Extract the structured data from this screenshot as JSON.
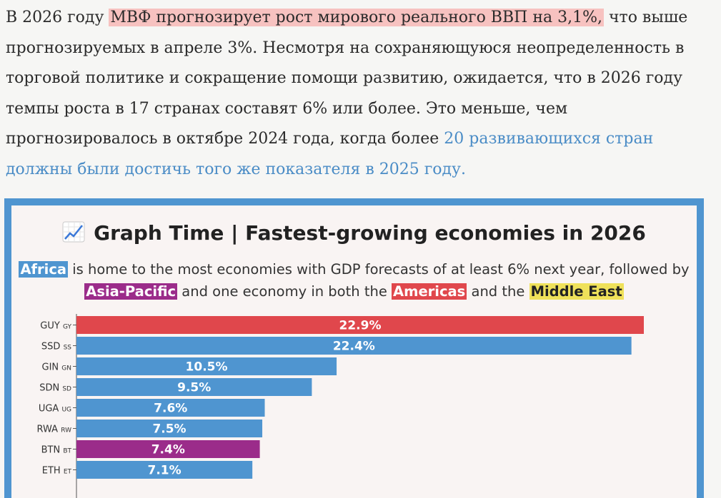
{
  "article": {
    "p1": "В 2026 году ",
    "highlight": "МВФ прогнозирует рост мирового реального ВВП на 3,1%,",
    "p2": " что выше прогнозируемых в апреле 3%. Несмотря на сохраняющуюся неопределенность в торговой политике и сокращение помощи развитию, ожидается, что в 2026 году темпы роста в 17 странах составят 6% или более. Это меньше, чем прогнозировалось в октябре 2024 года, когда более ",
    "link": "20 развивающихся стран должны были достичь того же показателя в 2025 году."
  },
  "chart_data": {
    "type": "bar",
    "title": "Graph Time | Fastest-growing economies in 2026",
    "subtitle": {
      "s1": "Africa",
      "s2": " is home to the most economies with GDP forecasts of at least 6% next year, followed by ",
      "s3": "Asia-Pacific",
      "s4": " and one economy in both the ",
      "s5": "Americas",
      "s6": " and the ",
      "s7": "Middle East"
    },
    "categories": [
      "GUY",
      "SSD",
      "GIN",
      "SDN",
      "UGA",
      "RWA",
      "BTN",
      "ETH"
    ],
    "codes": [
      "GY",
      "SS",
      "GN",
      "SD",
      "UG",
      "RW",
      "BT",
      "ET"
    ],
    "values": [
      22.9,
      22.4,
      10.5,
      9.5,
      7.6,
      7.5,
      7.4,
      7.1
    ],
    "labels": [
      "22.9%",
      "22.4%",
      "10.5%",
      "9.5%",
      "7.6%",
      "7.5%",
      "7.4%",
      "7.1%"
    ],
    "regions": [
      "Americas",
      "Africa",
      "Africa",
      "Africa",
      "Africa",
      "Africa",
      "Asia-Pacific",
      "Africa"
    ],
    "colors": {
      "Africa": "#4f95d0",
      "Asia-Pacific": "#9b2c8a",
      "Americas": "#e0474c",
      "Middle East": "#efe15a"
    },
    "xlim": [
      0,
      22.9
    ]
  }
}
